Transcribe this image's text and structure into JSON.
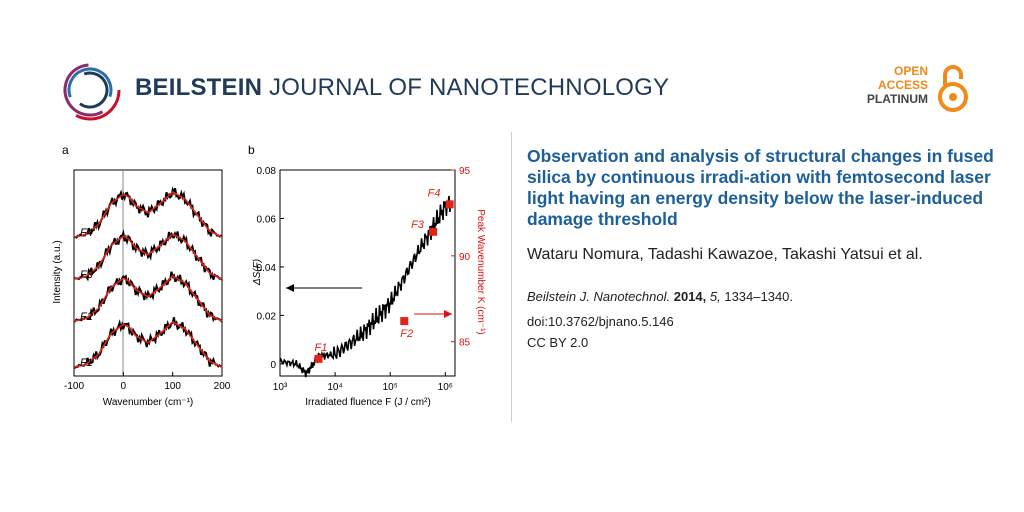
{
  "header": {
    "journal_bold": "BEILSTEIN",
    "journal_rest": " JOURNAL OF NANOTECHNOLOGY",
    "open_access": [
      "OPEN",
      "ACCESS",
      "PLATINUM"
    ]
  },
  "article": {
    "title": "Observation and analysis of structural changes in fused silica by continuous irradi-ation with femtosecond laser light having an energy density below the laser-induced damage threshold",
    "authors": "Wataru Nomura, Tadashi Kawazoe, Takashi Yatsui et al.",
    "citation_journal": "Beilstein J. Nanotechnol.",
    "citation_year": "2014,",
    "citation_volume": "5,",
    "citation_pages": " 1334–1340.",
    "doi": "doi:10.3762/bjnano.5.146",
    "license": "CC BY 2.0"
  },
  "figure": {
    "panel_a": {
      "label": "a",
      "ylabel": "Intensity (a.u.)",
      "xlabel": "Wavenumber (cm⁻¹)",
      "xticks": [
        "-100",
        "0",
        "100",
        "200"
      ],
      "curve_labels": [
        "F4",
        "F3",
        "F2",
        "F1"
      ]
    },
    "panel_b": {
      "label": "b",
      "ylabel_left": "ΔS(F)",
      "ylabel_right": "Peak  Wavenumber  K (cm⁻¹)",
      "xlabel": "Irradiated fluence F (J / cm²)",
      "yticks_left": [
        "0.08",
        "0.06",
        "0.04",
        "0.02",
        "0"
      ],
      "yticks_right": [
        "95",
        "90",
        "85"
      ],
      "xticks": [
        "10³",
        "10⁴",
        "10⁵",
        "10⁶"
      ],
      "point_labels": [
        "F1",
        "F2",
        "F3",
        "F4"
      ]
    }
  },
  "chart_data": [
    {
      "type": "line",
      "title": "",
      "xlabel": "Wavenumber (cm⁻¹)",
      "ylabel": "Intensity (a.u.)",
      "xlim": [
        -100,
        200
      ],
      "series": [
        {
          "name": "F4",
          "x": [
            -100,
            -75,
            -50,
            -25,
            0,
            10,
            25,
            50,
            75,
            100,
            125,
            150,
            175,
            200
          ],
          "values": [
            0.02,
            0.08,
            0.3,
            0.75,
            0.95,
            0.9,
            0.7,
            0.55,
            0.75,
            1.0,
            0.85,
            0.5,
            0.15,
            0.02
          ]
        },
        {
          "name": "F3",
          "x": [
            -100,
            -75,
            -50,
            -25,
            0,
            10,
            25,
            50,
            75,
            100,
            125,
            150,
            175,
            200
          ],
          "values": [
            0.02,
            0.08,
            0.3,
            0.75,
            0.95,
            0.9,
            0.7,
            0.55,
            0.75,
            1.0,
            0.85,
            0.5,
            0.15,
            0.02
          ]
        },
        {
          "name": "F2",
          "x": [
            -100,
            -75,
            -50,
            -25,
            0,
            10,
            25,
            50,
            75,
            100,
            125,
            150,
            175,
            200
          ],
          "values": [
            0.02,
            0.08,
            0.3,
            0.75,
            0.95,
            0.9,
            0.7,
            0.55,
            0.75,
            1.0,
            0.85,
            0.5,
            0.15,
            0.02
          ]
        },
        {
          "name": "F1",
          "x": [
            -100,
            -75,
            -50,
            -25,
            0,
            10,
            25,
            50,
            75,
            100,
            125,
            150,
            175,
            200
          ],
          "values": [
            0.02,
            0.08,
            0.3,
            0.75,
            0.95,
            0.9,
            0.7,
            0.55,
            0.75,
            1.0,
            0.85,
            0.5,
            0.15,
            0.02
          ]
        }
      ]
    },
    {
      "type": "scatter",
      "title": "",
      "xlabel": "Irradiated fluence F (J / cm²)",
      "ylabel": "ΔS(F)",
      "xscale": "log",
      "xlim": [
        1000,
        1500000
      ],
      "ylim": [
        -0.005,
        0.08
      ],
      "series": [
        {
          "name": "ΔS(F)",
          "x": [
            1000,
            2000,
            3000,
            5000,
            10000,
            30000,
            100000,
            300000,
            1000000,
            1300000
          ],
          "values": [
            0.001,
            0.0,
            -0.004,
            0.003,
            0.004,
            0.012,
            0.025,
            0.045,
            0.065,
            0.067
          ]
        },
        {
          "name": "K",
          "x": [
            5000,
            180000,
            600000,
            1200000
          ],
          "values": [
            84.0,
            86.2,
            91.4,
            93.0
          ]
        }
      ],
      "yright_lim": [
        83,
        95
      ]
    }
  ]
}
